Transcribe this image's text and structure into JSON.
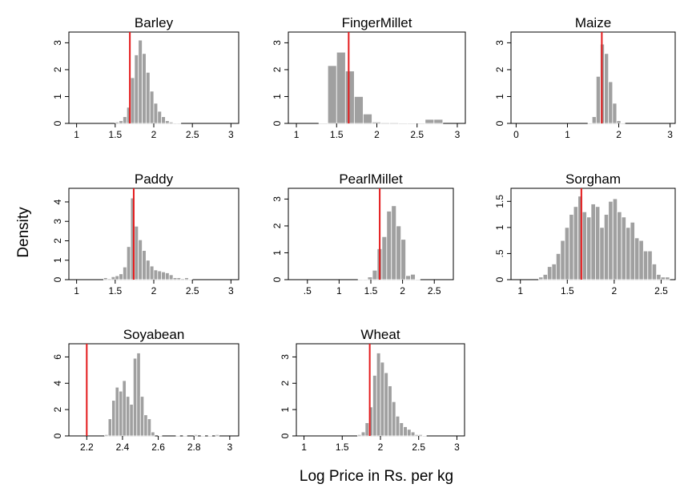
{
  "figure": {
    "ylabel": "Density",
    "xlabel": "Log Price in Rs. per kg",
    "bar_color": "#a0a0a0",
    "marker_color": "#e41a1c"
  },
  "chart_data": [
    {
      "type": "bar",
      "title": "Barley",
      "xlim": [
        0.9,
        3.1
      ],
      "ylim": [
        0,
        3.4
      ],
      "xticks": [
        1,
        1.5,
        2,
        2.5,
        3
      ],
      "xtick_labels": [
        "1",
        "1.5",
        "2",
        "2.5",
        "3"
      ],
      "yticks": [
        0,
        1,
        2,
        3
      ],
      "ytick_labels": [
        "0",
        "1",
        "2",
        "3"
      ],
      "bin_width": 0.05,
      "bins": [
        1.5,
        1.55,
        1.6,
        1.65,
        1.7,
        1.75,
        1.8,
        1.85,
        1.9,
        1.95,
        2.0,
        2.05,
        2.1,
        2.15,
        2.2,
        2.25,
        2.3
      ],
      "values": [
        0.05,
        0.1,
        0.25,
        0.6,
        1.7,
        2.55,
        3.1,
        2.6,
        1.9,
        1.2,
        0.75,
        0.45,
        0.25,
        0.1,
        0.05,
        0.02,
        0
      ],
      "marker": 1.69
    },
    {
      "type": "bar",
      "title": "FingerMillet",
      "xlim": [
        0.9,
        3.1
      ],
      "ylim": [
        0,
        3.4
      ],
      "xticks": [
        1,
        1.5,
        2,
        2.5,
        3
      ],
      "xtick_labels": [
        "1",
        "1.5",
        "2",
        "2.5",
        "3"
      ],
      "yticks": [
        0,
        1,
        2,
        3
      ],
      "ytick_labels": [
        "0",
        "1",
        "2",
        "3"
      ],
      "bin_width": 0.11,
      "bins": [
        1.28,
        1.39,
        1.5,
        1.61,
        1.72,
        1.83,
        1.94,
        2.05,
        2.16,
        2.27,
        2.38,
        2.49,
        2.6,
        2.71
      ],
      "values": [
        0.02,
        2.15,
        2.65,
        1.95,
        1.0,
        0.35,
        0.05,
        0.03,
        0.03,
        0.02,
        0,
        0,
        0.15,
        0.15
      ],
      "marker": 1.65
    },
    {
      "type": "bar",
      "title": "Maize",
      "xlim": [
        -0.1,
        3.1
      ],
      "ylim": [
        0,
        3.4
      ],
      "xticks": [
        0,
        1,
        2,
        3
      ],
      "xtick_labels": [
        "0",
        "1",
        "2",
        "3"
      ],
      "yticks": [
        0,
        1,
        2,
        3
      ],
      "ytick_labels": [
        "0",
        "1",
        "2",
        "3"
      ],
      "bin_width": 0.08,
      "bins": [
        1.4,
        1.48,
        1.56,
        1.64,
        1.72,
        1.8,
        1.88,
        1.96,
        2.04
      ],
      "values": [
        0.02,
        0.25,
        1.75,
        2.95,
        2.6,
        1.55,
        0.75,
        0.1,
        0.02
      ],
      "marker": 1.67
    },
    {
      "type": "bar",
      "title": "Paddy",
      "xlim": [
        0.9,
        3.1
      ],
      "ylim": [
        0,
        4.7
      ],
      "xticks": [
        1,
        1.5,
        2,
        2.5,
        3
      ],
      "xtick_labels": [
        "1",
        "1.5",
        "2",
        "2.5",
        "3"
      ],
      "yticks": [
        0,
        1,
        2,
        3,
        4
      ],
      "ytick_labels": [
        "0",
        "1",
        "2",
        "3",
        "4"
      ],
      "bin_width": 0.05,
      "bins": [
        1.35,
        1.4,
        1.45,
        1.5,
        1.55,
        1.6,
        1.65,
        1.7,
        1.75,
        1.8,
        1.85,
        1.9,
        1.95,
        2.0,
        2.05,
        2.1,
        2.15,
        2.2,
        2.25,
        2.3,
        2.35,
        2.4,
        2.45
      ],
      "values": [
        0.1,
        0.05,
        0.15,
        0.2,
        0.3,
        0.65,
        1.7,
        4.2,
        2.75,
        2.05,
        1.5,
        1.0,
        0.7,
        0.5,
        0.45,
        0.4,
        0.35,
        0.25,
        0.1,
        0.1,
        0.05,
        0.1,
        0.02
      ],
      "marker": 1.74
    },
    {
      "type": "bar",
      "title": "PearlMillet",
      "xlim": [
        0.2,
        2.8
      ],
      "ylim": [
        0,
        3.4
      ],
      "xticks": [
        0.5,
        1,
        1.5,
        2,
        2.5
      ],
      "xtick_labels": [
        ".5",
        "1",
        "1.5",
        "2",
        "2.5"
      ],
      "yticks": [
        0,
        1,
        2,
        3
      ],
      "ytick_labels": [
        "0",
        "1",
        "2",
        "3"
      ],
      "bin_width": 0.075,
      "bins": [
        1.3,
        1.375,
        1.45,
        1.525,
        1.6,
        1.675,
        1.75,
        1.825,
        1.9,
        1.975,
        2.05,
        2.125,
        2.2
      ],
      "values": [
        0.02,
        0.02,
        0.1,
        0.35,
        1.15,
        1.6,
        2.55,
        2.75,
        2.0,
        1.5,
        0.15,
        0.2,
        0.02
      ],
      "marker": 1.64
    },
    {
      "type": "bar",
      "title": "Sorgham",
      "xlim": [
        0.9,
        2.65
      ],
      "ylim": [
        0,
        1.75
      ],
      "xticks": [
        1,
        1.5,
        2,
        2.5
      ],
      "xtick_labels": [
        "1",
        "1.5",
        "2",
        "2.5"
      ],
      "yticks": [
        0,
        0.5,
        1,
        1.5
      ],
      "ytick_labels": [
        "0",
        ".5",
        "1",
        "1.5"
      ],
      "bin_width": 0.0465,
      "bins": [
        1.195,
        1.242,
        1.288,
        1.335,
        1.381,
        1.428,
        1.474,
        1.521,
        1.567,
        1.614,
        1.66,
        1.707,
        1.753,
        1.8,
        1.846,
        1.893,
        1.939,
        1.986,
        2.032,
        2.079,
        2.125,
        2.172,
        2.218,
        2.265,
        2.311,
        2.358,
        2.404,
        2.451,
        2.497,
        2.544
      ],
      "values": [
        0.05,
        0.1,
        0.25,
        0.3,
        0.5,
        0.75,
        1.0,
        1.25,
        1.4,
        1.6,
        1.3,
        1.2,
        1.45,
        1.4,
        1.0,
        1.25,
        1.5,
        1.55,
        1.3,
        1.2,
        1.0,
        1.1,
        0.8,
        0.75,
        0.55,
        0.55,
        0.3,
        0.1,
        0.05,
        0.05
      ],
      "marker": 1.65
    },
    {
      "type": "bar",
      "title": "Soyabean",
      "xlim": [
        2.1,
        3.05
      ],
      "ylim": [
        0,
        7.0
      ],
      "xticks": [
        2.2,
        2.4,
        2.6,
        2.8,
        3
      ],
      "xtick_labels": [
        "2.2",
        "2.4",
        "2.6",
        "2.8",
        "3"
      ],
      "yticks": [
        0,
        2,
        4,
        6
      ],
      "ytick_labels": [
        "0",
        "2",
        "4",
        "6"
      ],
      "bin_width": 0.02,
      "bins": [
        2.3,
        2.32,
        2.34,
        2.36,
        2.38,
        2.4,
        2.42,
        2.44,
        2.46,
        2.48,
        2.5,
        2.52,
        2.54,
        2.56,
        2.6,
        2.7,
        2.74,
        2.8,
        2.84,
        2.88,
        2.92
      ],
      "values": [
        0.1,
        1.3,
        2.7,
        3.7,
        3.4,
        4.2,
        3.0,
        2.4,
        5.9,
        6.3,
        3.0,
        1.6,
        1.3,
        0.3,
        0.05,
        0.05,
        0.05,
        0.1,
        0.05,
        0.05,
        0.1
      ],
      "marker": 2.2
    },
    {
      "type": "bar",
      "title": "Wheat",
      "xlim": [
        0.9,
        3.1
      ],
      "ylim": [
        0,
        3.5
      ],
      "xticks": [
        1,
        1.5,
        2,
        2.5,
        3
      ],
      "xtick_labels": [
        "1",
        "1.5",
        "2",
        "2.5",
        "3"
      ],
      "yticks": [
        0,
        1,
        2,
        3
      ],
      "ytick_labels": [
        "0",
        "1",
        "2",
        "3"
      ],
      "bin_width": 0.05,
      "bins": [
        1.7,
        1.75,
        1.8,
        1.85,
        1.9,
        1.95,
        2.0,
        2.05,
        2.1,
        2.15,
        2.2,
        2.25,
        2.3,
        2.35,
        2.4,
        2.45,
        2.5,
        2.55
      ],
      "values": [
        0.05,
        0.15,
        0.5,
        1.1,
        2.3,
        3.15,
        2.8,
        2.4,
        1.9,
        1.3,
        0.75,
        0.5,
        0.35,
        0.25,
        0.15,
        0.05,
        0.05,
        0.02
      ],
      "marker": 1.86
    }
  ]
}
